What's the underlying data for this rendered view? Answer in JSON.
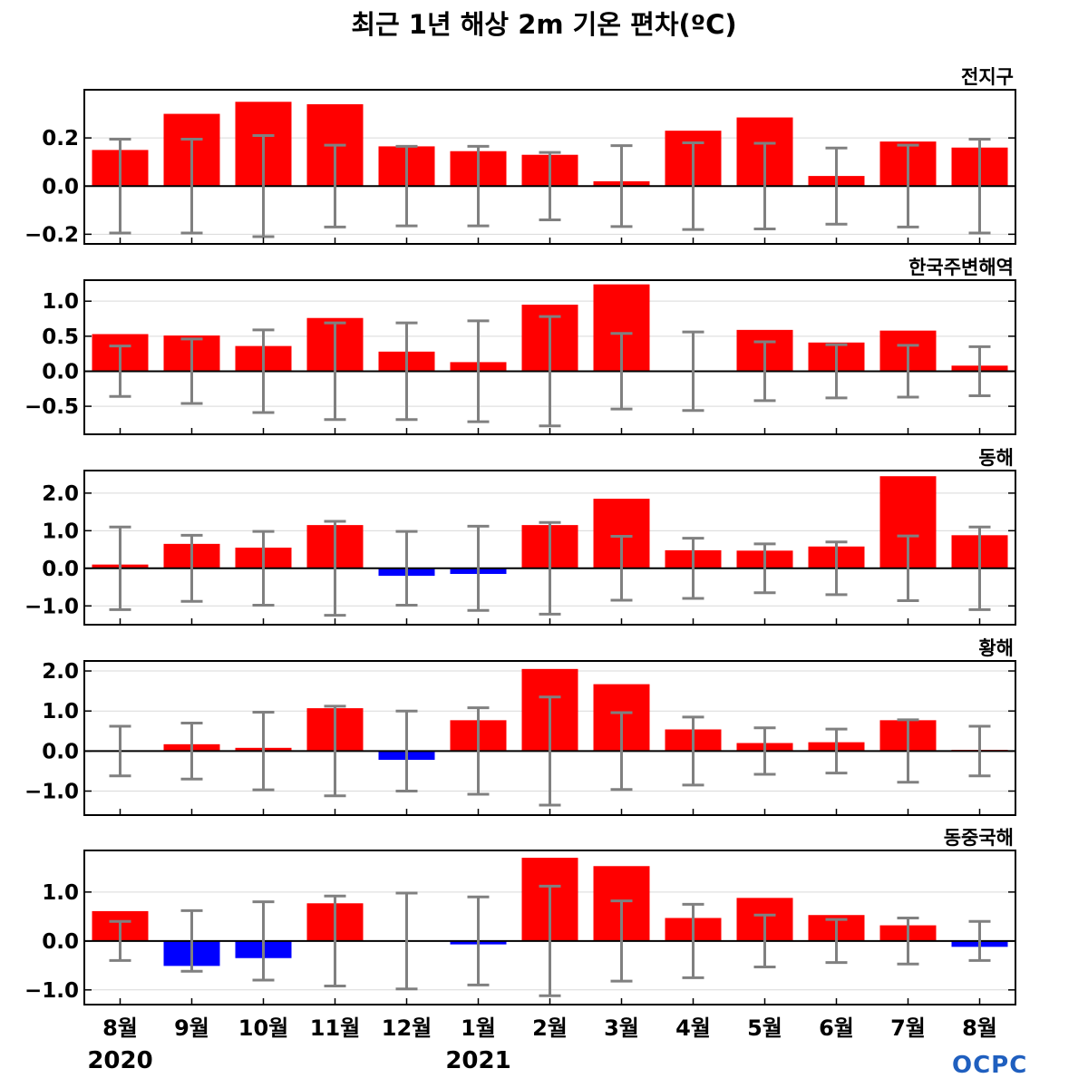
{
  "title": "최근 1년 해상 2m 기온 편차(ºC)",
  "logo": "OCPC",
  "chart_data": {
    "type": "bar",
    "categories": [
      "8월",
      "9월",
      "10월",
      "11월",
      "12월",
      "1월",
      "2월",
      "3월",
      "4월",
      "5월",
      "6월",
      "7월",
      "8월"
    ],
    "year_labels": [
      {
        "index": 0,
        "text": "2020"
      },
      {
        "index": 5,
        "text": "2021"
      }
    ],
    "colors": {
      "positive": "#ff0000",
      "negative": "#0000ff",
      "error_bar": "#808080",
      "zero_line": "#000000",
      "grid": "#d9d9d9"
    },
    "grid": true,
    "panels": [
      {
        "name": "전지구",
        "ylim": [
          -0.24,
          0.4
        ],
        "yticks": [
          -0.2,
          0.0,
          0.2
        ],
        "tick_labels": [
          "−0.2",
          "0.0",
          "0.2"
        ],
        "values": [
          0.15,
          0.3,
          0.35,
          0.34,
          0.165,
          0.145,
          0.13,
          0.02,
          0.23,
          0.285,
          0.042,
          0.185,
          0.16
        ],
        "error": [
          0.195,
          0.195,
          0.21,
          0.17,
          0.165,
          0.165,
          0.14,
          0.168,
          0.18,
          0.178,
          0.158,
          0.17,
          0.195
        ]
      },
      {
        "name": "한국주변해역",
        "ylim": [
          -0.9,
          1.3
        ],
        "yticks": [
          -0.5,
          0.0,
          0.5,
          1.0
        ],
        "tick_labels": [
          "−0.5",
          "0.0",
          "0.5",
          "1.0"
        ],
        "values": [
          0.53,
          0.51,
          0.36,
          0.76,
          0.28,
          0.13,
          0.95,
          1.24,
          0.01,
          0.59,
          0.41,
          0.58,
          0.08
        ],
        "error": [
          0.36,
          0.46,
          0.59,
          0.69,
          0.69,
          0.72,
          0.78,
          0.54,
          0.56,
          0.42,
          0.38,
          0.37,
          0.35
        ]
      },
      {
        "name": "동해",
        "ylim": [
          -1.5,
          2.6
        ],
        "yticks": [
          -1.0,
          0.0,
          1.0,
          2.0
        ],
        "tick_labels": [
          "−1.0",
          "0.0",
          "1.0",
          "2.0"
        ],
        "values": [
          0.1,
          0.65,
          0.55,
          1.15,
          -0.2,
          -0.15,
          1.15,
          1.85,
          0.48,
          0.47,
          0.58,
          2.45,
          0.88
        ],
        "error": [
          1.1,
          0.88,
          0.98,
          1.25,
          0.98,
          1.12,
          1.22,
          0.85,
          0.8,
          0.65,
          0.7,
          0.86,
          1.1
        ]
      },
      {
        "name": "황해",
        "ylim": [
          -1.6,
          2.25
        ],
        "yticks": [
          -1.0,
          0.0,
          1.0,
          2.0
        ],
        "tick_labels": [
          "−1.0",
          "0.0",
          "1.0",
          "2.0"
        ],
        "values": [
          0.01,
          0.17,
          0.08,
          1.07,
          -0.22,
          0.77,
          2.05,
          1.67,
          0.54,
          0.2,
          0.22,
          0.77,
          0.03
        ],
        "error": [
          0.62,
          0.7,
          0.97,
          1.12,
          1.0,
          1.08,
          1.35,
          0.96,
          0.85,
          0.58,
          0.55,
          0.78,
          0.62
        ]
      },
      {
        "name": "동중국해",
        "ylim": [
          -1.3,
          1.85
        ],
        "yticks": [
          -1.0,
          0.0,
          1.0
        ],
        "tick_labels": [
          "−1.0",
          "0.0",
          "1.0"
        ],
        "values": [
          0.61,
          -0.51,
          -0.35,
          0.77,
          0.01,
          -0.07,
          1.7,
          1.53,
          0.47,
          0.88,
          0.53,
          0.32,
          -0.12
        ],
        "error": [
          0.4,
          0.62,
          0.8,
          0.92,
          0.98,
          0.9,
          1.12,
          0.82,
          0.75,
          0.53,
          0.44,
          0.47,
          0.4
        ]
      }
    ]
  }
}
